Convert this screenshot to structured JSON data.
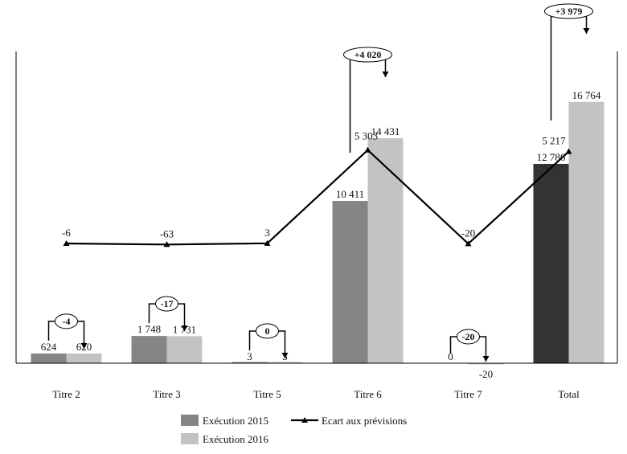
{
  "chart_data": {
    "type": "bar",
    "categories": [
      "Titre 2",
      "Titre 3",
      "Titre 5",
      "Titre 6",
      "Titre 7",
      "Total"
    ],
    "series": [
      {
        "name": "Exécution 2015",
        "values": [
          624,
          1748,
          3,
          10411,
          0,
          12786
        ],
        "labels": [
          "624",
          "1 748",
          "3",
          "10 411",
          "0",
          "12 786"
        ],
        "color": "#858585",
        "total_color": "#333333"
      },
      {
        "name": "Exécution 2016",
        "values": [
          620,
          1731,
          3,
          14431,
          -20,
          16764
        ],
        "labels": [
          "620",
          "1 731",
          "3",
          "14 431",
          "-20",
          "16 764"
        ],
        "color": "#c3c3c3"
      }
    ],
    "line_series": {
      "name": "Ecart aux prévisions",
      "values": [
        -6,
        -63,
        3,
        5303,
        -20,
        5217
      ],
      "labels": [
        "-6",
        "-63",
        "3",
        "5 303",
        "-20",
        "5 217"
      ],
      "color": "#000000"
    },
    "variations": [
      "-4",
      "-17",
      "0",
      "+4 020",
      "-20",
      "+3 979"
    ],
    "bar_ylim": [
      -1000,
      20000
    ],
    "line_ylim": [
      -10000,
      12000
    ],
    "grid": false,
    "legend_position": "bottom"
  }
}
